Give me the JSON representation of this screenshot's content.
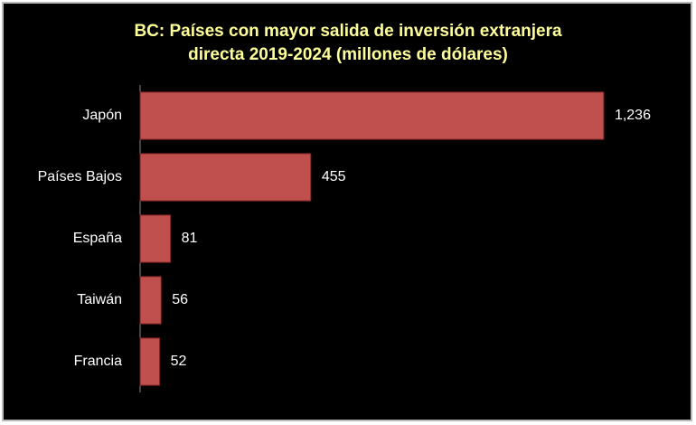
{
  "chart_data": {
    "type": "bar",
    "orientation": "horizontal",
    "title": [
      "BC: Países con mayor salida de inversión extranjera",
      "directa 2019-2024 (millones de dólares)"
    ],
    "categories": [
      "Japón",
      "Países Bajos",
      "España",
      "Taiwán",
      "Francia"
    ],
    "values": [
      1236,
      455,
      81,
      56,
      52
    ],
    "value_labels": [
      "1,236",
      "455",
      "81",
      "56",
      "52"
    ],
    "color": "#c0504d",
    "xlim": [
      0,
      1400
    ]
  }
}
